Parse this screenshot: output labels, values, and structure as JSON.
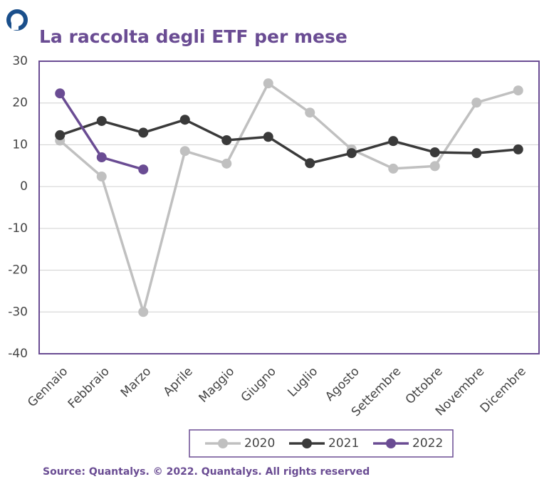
{
  "chart_data": {
    "type": "line",
    "title": "La raccolta degli ETF per mese",
    "source": "Source: Quantalys. © 2022. Quantalys. All rights reserved",
    "categories": [
      "Gennaio",
      "Febbraio",
      "Marzo",
      "Aprile",
      "Maggio",
      "Giugno",
      "Luglio",
      "Agosto",
      "Settembre",
      "Ottobre",
      "Novembre",
      "Dicembre"
    ],
    "series": [
      {
        "name": "2020",
        "color": "#c0c0c0",
        "values": [
          11,
          2.4,
          -30,
          8.5,
          5.5,
          24.7,
          17.7,
          8.9,
          4.3,
          4.9,
          20.1,
          23
        ]
      },
      {
        "name": "2021",
        "color": "#3a3a3a",
        "values": [
          12.3,
          15.7,
          12.9,
          16,
          11.1,
          11.9,
          5.6,
          8,
          10.9,
          8.2,
          8,
          8.9
        ]
      },
      {
        "name": "2022",
        "color": "#6a4c93",
        "values": [
          22.3,
          7,
          4.1,
          null,
          null,
          null,
          null,
          null,
          null,
          null,
          null,
          null
        ]
      }
    ],
    "ylim": [
      -40,
      30
    ],
    "yticks": [
      -40,
      -30,
      -20,
      -10,
      0,
      10,
      20,
      30
    ],
    "grid": true,
    "legend": "bottom"
  }
}
